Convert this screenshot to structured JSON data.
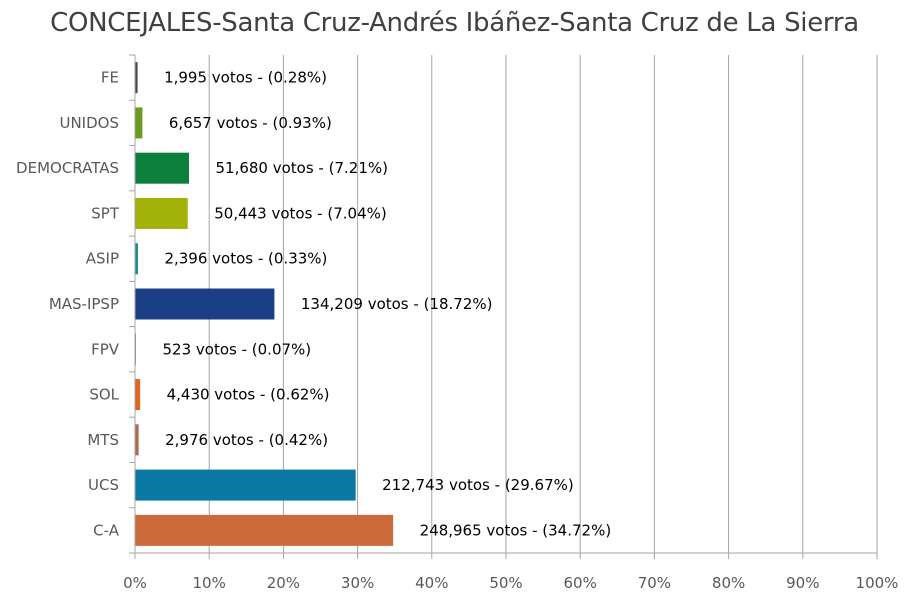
{
  "chart_data": {
    "type": "bar",
    "orientation": "horizontal",
    "title": "CONCEJALES-Santa Cruz-Andrés Ibáñez-Santa Cruz de La Sierra",
    "xlabel": "",
    "ylabel": "",
    "xlim": [
      0,
      100
    ],
    "x_ticks": [
      "0%",
      "10%",
      "20%",
      "30%",
      "40%",
      "50%",
      "60%",
      "70%",
      "80%",
      "90%",
      "100%"
    ],
    "grid": true,
    "legend": "none",
    "categories": [
      "FE",
      "UNIDOS",
      "DEMOCRATAS",
      "SPT",
      "ASIP",
      "MAS-IPSP",
      "FPV",
      "SOL",
      "MTS",
      "UCS",
      "C-A"
    ],
    "values": [
      0.28,
      0.93,
      7.21,
      7.04,
      0.33,
      18.72,
      0.07,
      0.62,
      0.42,
      29.67,
      34.72
    ],
    "votes": [
      "1,995",
      "6,657",
      "51,680",
      "50,443",
      "2,396",
      "134,209",
      "523",
      "4,430",
      "2,976",
      "212,743",
      "248,965"
    ],
    "data_labels": [
      "1,995 votos - (0.28%)",
      "6,657 votos - (0.93%)",
      "51,680 votos - (7.21%)",
      "50,443 votos - (7.04%)",
      "2,396 votos - (0.33%)",
      "134,209 votos - (18.72%)",
      "523 votos - (0.07%)",
      "4,430 votos - (0.62%)",
      "2,976 votos - (0.42%)",
      "212,743 votos - (29.67%)",
      "248,965 votos - (34.72%)"
    ],
    "colors": [
      "#4a4a4a",
      "#6b9b1e",
      "#0b7f3b",
      "#a3b209",
      "#1e8a8a",
      "#1b3f86",
      "#8c8c8c",
      "#e2671e",
      "#b06a4a",
      "#0a78a2",
      "#cd6a3a"
    ]
  }
}
